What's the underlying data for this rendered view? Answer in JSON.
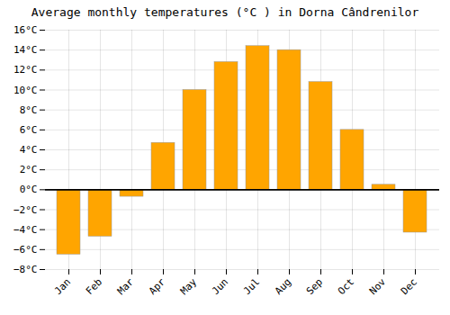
{
  "chart_data": {
    "type": "bar",
    "title": "Average monthly temperatures (°C ) in Dorna Cândrenilor",
    "categories": [
      "Jan",
      "Feb",
      "Mar",
      "Apr",
      "May",
      "Jun",
      "Jul",
      "Aug",
      "Sep",
      "Oct",
      "Nov",
      "Dec"
    ],
    "values": [
      -6.5,
      -4.7,
      -0.7,
      4.7,
      10.0,
      12.8,
      14.4,
      14.0,
      10.8,
      6.0,
      0.5,
      -4.3
    ],
    "color": "#FFA500",
    "ylim": [
      -8,
      16
    ],
    "yticks": [
      {
        "value": -8,
        "label": "−8°C"
      },
      {
        "value": -6,
        "label": "−6°C"
      },
      {
        "value": -4,
        "label": "−4°C"
      },
      {
        "value": -2,
        "label": "−2°C"
      },
      {
        "value": 0,
        "label": "0°C"
      },
      {
        "value": 2,
        "label": "2°C"
      },
      {
        "value": 4,
        "label": "4°C"
      },
      {
        "value": 6,
        "label": "6°C"
      },
      {
        "value": 8,
        "label": "8°C"
      },
      {
        "value": 10,
        "label": "10°C"
      },
      {
        "value": 12,
        "label": "12°C"
      },
      {
        "value": 14,
        "label": "14°C"
      },
      {
        "value": 16,
        "label": "16°C"
      }
    ],
    "grid": true
  }
}
